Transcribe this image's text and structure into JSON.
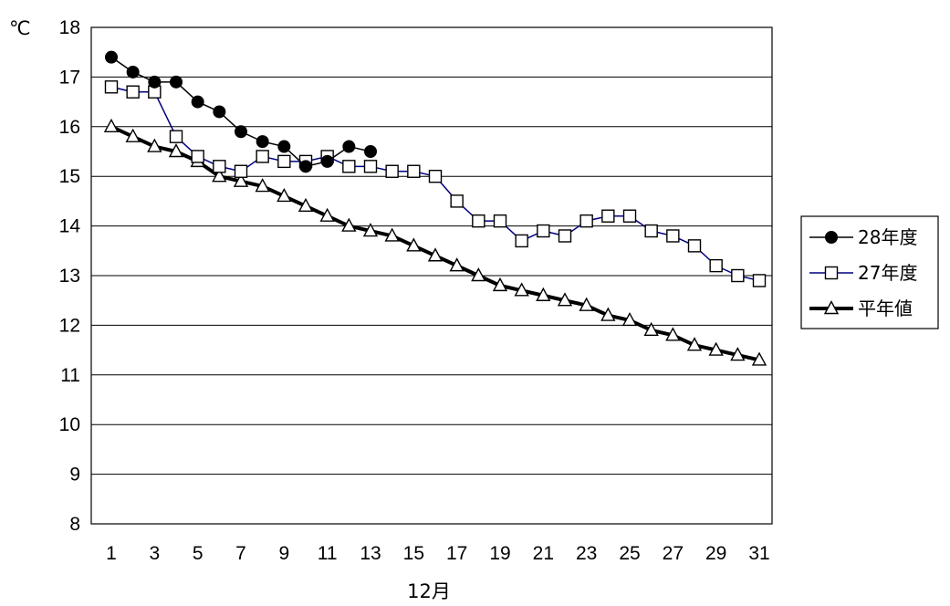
{
  "chart_data": {
    "type": "line",
    "ylabel": "℃",
    "xlabel": "12月",
    "ylim": [
      8,
      18
    ],
    "yticks": [
      8,
      9,
      10,
      11,
      12,
      13,
      14,
      15,
      16,
      17,
      18
    ],
    "xlim": [
      1,
      31
    ],
    "xticks": [
      1,
      3,
      5,
      7,
      9,
      11,
      13,
      15,
      17,
      19,
      21,
      23,
      25,
      27,
      29,
      31
    ],
    "grid": true,
    "legend_position": "right",
    "series": [
      {
        "name": "28年度",
        "marker": "circle-filled",
        "color": "#000000",
        "x": [
          1,
          2,
          3,
          4,
          5,
          6,
          7,
          8,
          9,
          10,
          11,
          12,
          13
        ],
        "values": [
          17.4,
          17.1,
          16.9,
          16.9,
          16.5,
          16.3,
          15.9,
          15.7,
          15.6,
          15.2,
          15.3,
          15.6,
          15.5
        ]
      },
      {
        "name": "27年度",
        "marker": "square-open",
        "color": "#000080",
        "x": [
          1,
          2,
          3,
          4,
          5,
          6,
          7,
          8,
          9,
          10,
          11,
          12,
          13,
          14,
          15,
          16,
          17,
          18,
          19,
          20,
          21,
          22,
          23,
          24,
          25,
          26,
          27,
          28,
          29,
          30,
          31
        ],
        "values": [
          16.8,
          16.7,
          16.7,
          15.8,
          15.4,
          15.2,
          15.1,
          15.4,
          15.3,
          15.3,
          15.4,
          15.2,
          15.2,
          15.1,
          15.1,
          15.0,
          14.5,
          14.1,
          14.1,
          13.7,
          13.9,
          13.8,
          14.1,
          14.2,
          14.2,
          13.9,
          13.8,
          13.6,
          13.2,
          13.0,
          12.9
        ]
      },
      {
        "name": "平年値",
        "marker": "triangle-open",
        "color": "#000000",
        "thick": true,
        "x": [
          1,
          2,
          3,
          4,
          5,
          6,
          7,
          8,
          9,
          10,
          11,
          12,
          13,
          14,
          15,
          16,
          17,
          18,
          19,
          20,
          21,
          22,
          23,
          24,
          25,
          26,
          27,
          28,
          29,
          30,
          31
        ],
        "values": [
          16.0,
          15.8,
          15.6,
          15.5,
          15.3,
          15.0,
          14.9,
          14.8,
          14.6,
          14.4,
          14.2,
          14.0,
          13.9,
          13.8,
          13.6,
          13.4,
          13.2,
          13.0,
          12.8,
          12.7,
          12.6,
          12.5,
          12.4,
          12.2,
          12.1,
          11.9,
          11.8,
          11.6,
          11.5,
          11.4,
          11.3
        ]
      }
    ]
  }
}
